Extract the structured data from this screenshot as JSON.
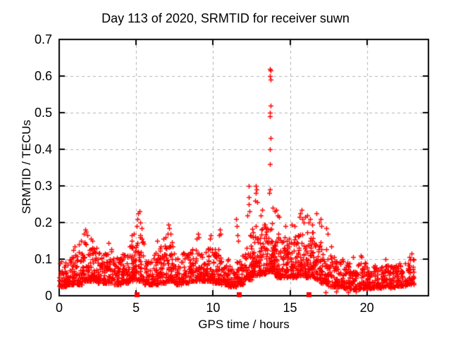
{
  "chart_data": {
    "type": "scatter",
    "title": "Day 113 of 2020, SRMTID for receiver suwn",
    "xlabel": "GPS time / hours",
    "ylabel": "SRMTID / TECUs",
    "xlim": [
      0,
      24
    ],
    "ylim": [
      0,
      0.7
    ],
    "xticks": [
      0,
      5,
      10,
      15,
      20
    ],
    "yticks": [
      0,
      0.1,
      0.2,
      0.3,
      0.4,
      0.5,
      0.6,
      0.7
    ],
    "grid": true,
    "grid_style": "dashed",
    "legend": "none",
    "marker": "plus",
    "marker_color": "#ff0000",
    "grid_color": "#b0b0b0",
    "frame_color": "#000000",
    "background": "#ffffff",
    "series": [
      {
        "name": "srmtid-scatter",
        "marker": "plus",
        "x_range_hours": [
          0.0,
          23.1
        ],
        "bands_note": "dense noise band per half-hour bin: [x_start, x_end, n_points, y_low, y_high]",
        "bands": [
          [
            0.0,
            0.5,
            48,
            0.025,
            0.095
          ],
          [
            0.5,
            1.0,
            50,
            0.03,
            0.11
          ],
          [
            1.0,
            1.5,
            50,
            0.03,
            0.125
          ],
          [
            1.5,
            2.0,
            54,
            0.04,
            0.155
          ],
          [
            2.0,
            2.5,
            52,
            0.04,
            0.14
          ],
          [
            2.5,
            3.0,
            50,
            0.035,
            0.125
          ],
          [
            3.0,
            3.5,
            50,
            0.035,
            0.13
          ],
          [
            3.5,
            4.0,
            48,
            0.03,
            0.11
          ],
          [
            4.0,
            4.5,
            50,
            0.035,
            0.12
          ],
          [
            4.5,
            5.0,
            55,
            0.04,
            0.15
          ],
          [
            5.0,
            5.5,
            55,
            0.04,
            0.17
          ],
          [
            5.5,
            6.0,
            45,
            0.03,
            0.1
          ],
          [
            6.0,
            6.5,
            46,
            0.03,
            0.12
          ],
          [
            6.5,
            7.0,
            50,
            0.035,
            0.14
          ],
          [
            7.0,
            7.5,
            50,
            0.04,
            0.15
          ],
          [
            7.5,
            8.0,
            46,
            0.03,
            0.11
          ],
          [
            8.0,
            8.5,
            50,
            0.035,
            0.12
          ],
          [
            8.5,
            9.0,
            52,
            0.04,
            0.13
          ],
          [
            9.0,
            9.5,
            50,
            0.04,
            0.125
          ],
          [
            9.5,
            10.0,
            50,
            0.04,
            0.13
          ],
          [
            10.0,
            10.5,
            50,
            0.035,
            0.13
          ],
          [
            10.5,
            11.0,
            45,
            0.03,
            0.1
          ],
          [
            11.0,
            11.5,
            44,
            0.025,
            0.09
          ],
          [
            11.5,
            12.0,
            46,
            0.03,
            0.11
          ],
          [
            12.0,
            12.5,
            55,
            0.045,
            0.17
          ],
          [
            12.5,
            13.0,
            60,
            0.055,
            0.19
          ],
          [
            13.0,
            13.5,
            60,
            0.06,
            0.195
          ],
          [
            13.5,
            14.0,
            60,
            0.065,
            0.2
          ],
          [
            14.0,
            14.5,
            55,
            0.05,
            0.175
          ],
          [
            14.5,
            15.0,
            52,
            0.05,
            0.16
          ],
          [
            15.0,
            15.5,
            55,
            0.05,
            0.17
          ],
          [
            15.5,
            16.0,
            56,
            0.055,
            0.185
          ],
          [
            16.0,
            16.5,
            55,
            0.05,
            0.175
          ],
          [
            16.5,
            17.0,
            52,
            0.045,
            0.15
          ],
          [
            17.0,
            17.5,
            50,
            0.035,
            0.13
          ],
          [
            17.5,
            18.0,
            46,
            0.025,
            0.11
          ],
          [
            18.0,
            18.5,
            45,
            0.022,
            0.095
          ],
          [
            18.5,
            19.0,
            44,
            0.02,
            0.09
          ],
          [
            19.0,
            19.5,
            44,
            0.018,
            0.088
          ],
          [
            19.5,
            20.0,
            44,
            0.02,
            0.095
          ],
          [
            20.0,
            20.5,
            44,
            0.02,
            0.082
          ],
          [
            20.5,
            21.0,
            44,
            0.022,
            0.08
          ],
          [
            21.0,
            21.5,
            44,
            0.024,
            0.088
          ],
          [
            21.5,
            22.0,
            44,
            0.022,
            0.082
          ],
          [
            22.0,
            22.5,
            46,
            0.026,
            0.09
          ],
          [
            22.5,
            23.1,
            50,
            0.03,
            0.1
          ]
        ],
        "peaks_note": "individually visible outlier points [hour, TECU]",
        "peaks": [
          [
            0.9,
            0.125
          ],
          [
            1.0,
            0.135
          ],
          [
            1.3,
            0.14
          ],
          [
            1.42,
            0.15
          ],
          [
            1.6,
            0.17
          ],
          [
            1.68,
            0.18
          ],
          [
            1.75,
            0.175
          ],
          [
            1.85,
            0.165
          ],
          [
            2.05,
            0.155
          ],
          [
            2.15,
            0.15
          ],
          [
            3.2,
            0.145
          ],
          [
            4.7,
            0.165
          ],
          [
            4.85,
            0.17
          ],
          [
            5.05,
            0.19
          ],
          [
            5.1,
            0.21
          ],
          [
            5.15,
            0.225
          ],
          [
            5.2,
            0.23
          ],
          [
            5.28,
            0.2
          ],
          [
            5.35,
            0.185
          ],
          [
            6.35,
            0.15
          ],
          [
            6.8,
            0.155
          ],
          [
            6.9,
            0.16
          ],
          [
            7.05,
            0.17
          ],
          [
            7.1,
            0.195
          ],
          [
            7.15,
            0.185
          ],
          [
            7.22,
            0.17
          ],
          [
            8.95,
            0.155
          ],
          [
            9.0,
            0.17
          ],
          [
            9.05,
            0.16
          ],
          [
            9.8,
            0.155
          ],
          [
            9.85,
            0.165
          ],
          [
            10.4,
            0.165
          ],
          [
            10.45,
            0.18
          ],
          [
            10.5,
            0.17
          ],
          [
            11.5,
            0.21
          ],
          [
            11.53,
            0.19
          ],
          [
            11.57,
            0.165
          ],
          [
            11.62,
            0.15
          ],
          [
            12.25,
            0.22
          ],
          [
            12.3,
            0.3
          ],
          [
            12.3,
            0.27
          ],
          [
            12.33,
            0.25
          ],
          [
            12.36,
            0.23
          ],
          [
            12.75,
            0.26
          ],
          [
            12.78,
            0.28
          ],
          [
            12.8,
            0.3
          ],
          [
            12.82,
            0.29
          ],
          [
            12.86,
            0.255
          ],
          [
            13.1,
            0.22
          ],
          [
            13.2,
            0.235
          ],
          [
            13.66,
            0.28
          ],
          [
            13.68,
            0.36
          ],
          [
            13.68,
            0.5
          ],
          [
            13.7,
            0.29
          ],
          [
            13.7,
            0.4
          ],
          [
            13.7,
            0.49
          ],
          [
            13.7,
            0.6
          ],
          [
            13.7,
            0.62
          ],
          [
            13.72,
            0.43
          ],
          [
            13.72,
            0.52
          ],
          [
            13.72,
            0.59
          ],
          [
            13.73,
            0.615
          ],
          [
            13.9,
            0.24
          ],
          [
            14.0,
            0.23
          ],
          [
            14.1,
            0.235
          ],
          [
            14.18,
            0.22
          ],
          [
            14.28,
            0.215
          ],
          [
            14.7,
            0.19
          ],
          [
            15.1,
            0.195
          ],
          [
            15.3,
            0.19
          ],
          [
            15.6,
            0.215
          ],
          [
            15.68,
            0.225
          ],
          [
            15.75,
            0.235
          ],
          [
            15.82,
            0.21
          ],
          [
            15.9,
            0.2
          ],
          [
            16.0,
            0.215
          ],
          [
            16.1,
            0.22
          ],
          [
            16.2,
            0.2
          ],
          [
            16.3,
            0.21
          ],
          [
            16.42,
            0.195
          ],
          [
            16.7,
            0.225
          ],
          [
            16.9,
            0.2
          ],
          [
            17.0,
            0.21
          ],
          [
            17.06,
            0.19
          ],
          [
            17.35,
            0.185
          ],
          [
            17.45,
            0.17
          ],
          [
            17.7,
            0.135
          ],
          [
            17.3,
            0.01
          ],
          [
            18.0,
            0.012
          ],
          [
            18.8,
            0.01
          ],
          [
            19.3,
            0.012
          ],
          [
            18.4,
            0.1
          ],
          [
            19.1,
            0.105
          ],
          [
            19.6,
            0.11
          ],
          [
            19.66,
            0.105
          ],
          [
            21.2,
            0.1
          ],
          [
            22.75,
            0.105
          ],
          [
            22.9,
            0.115
          ],
          [
            23.0,
            0.1
          ]
        ]
      },
      {
        "name": "event-markers-on-axis",
        "marker": "filled-square",
        "points": [
          [
            5.05,
            0
          ],
          [
            11.7,
            0
          ],
          [
            16.2,
            0
          ]
        ]
      }
    ]
  }
}
